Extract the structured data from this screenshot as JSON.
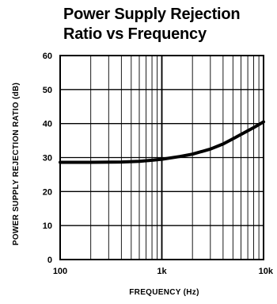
{
  "chart_data": {
    "type": "line",
    "title_lines": [
      "Power Supply Rejection",
      "Ratio vs Frequency"
    ],
    "xlabel": "FREQUENCY (Hz)",
    "ylabel": "POWER SUPPLY REJECTION RATIO (dB)",
    "x_scale": "log",
    "xlim": [
      100,
      10000
    ],
    "ylim": [
      0,
      60
    ],
    "x_ticks": [
      {
        "value": 100,
        "label": "100"
      },
      {
        "value": 1000,
        "label": "1k"
      },
      {
        "value": 10000,
        "label": "10k"
      }
    ],
    "y_ticks": [
      0,
      10,
      20,
      30,
      40,
      50,
      60
    ],
    "grid": true,
    "series": [
      {
        "x": [
          100,
          200,
          400,
          600,
          800,
          1000,
          1500,
          2000,
          3000,
          4000,
          5000,
          6000,
          8000,
          10000
        ],
        "y": [
          28.6,
          28.6,
          28.7,
          28.9,
          29.2,
          29.5,
          30.3,
          31.0,
          32.5,
          34.0,
          35.5,
          36.8,
          38.8,
          40.5
        ]
      }
    ]
  }
}
